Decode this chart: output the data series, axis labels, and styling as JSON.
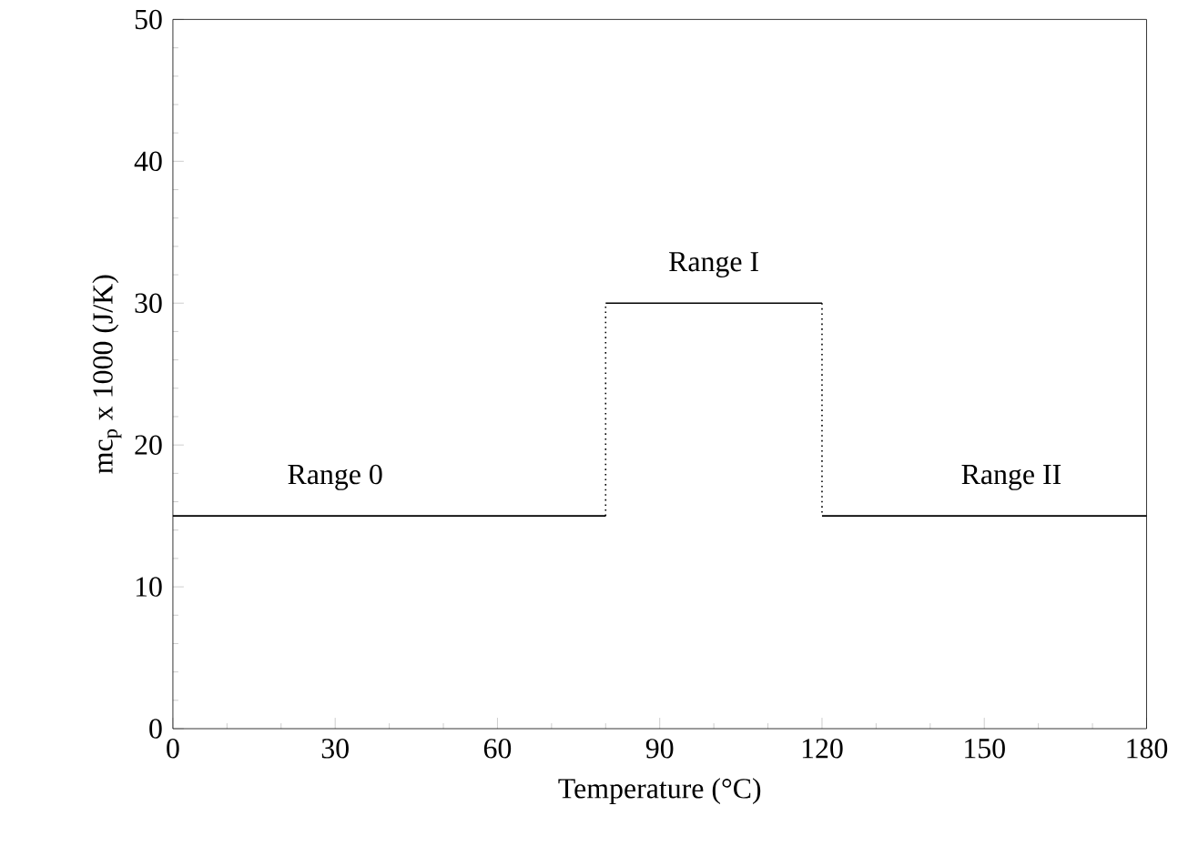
{
  "chart_data": {
    "type": "line",
    "xlabel": "Temperature (°C)",
    "ylabel": "mc$_{p}$ x 1000  (J/K)",
    "xlim": [
      0,
      180
    ],
    "xticks": [
      0,
      30,
      60,
      90,
      120,
      150,
      180
    ],
    "ylim": [
      0,
      50
    ],
    "yticks": [
      0,
      10,
      20,
      30,
      40,
      50
    ],
    "marker": "none",
    "series": [
      {
        "color": "#000000",
        "line_style": "solid",
        "x": [
          0,
          80
        ],
        "values": [
          15,
          15
        ]
      },
      {
        "color": "#000000",
        "line_style": "dotted",
        "x": [
          80,
          80
        ],
        "values": [
          15,
          30
        ]
      },
      {
        "color": "#000000",
        "line_style": "solid",
        "x": [
          80,
          120
        ],
        "values": [
          30,
          30
        ]
      },
      {
        "color": "#000000",
        "line_style": "dotted",
        "x": [
          120,
          120
        ],
        "values": [
          30,
          15
        ]
      },
      {
        "color": "#000000",
        "line_style": "solid",
        "x": [
          120,
          180
        ],
        "values": [
          15,
          15
        ]
      }
    ],
    "annotations": [
      {
        "text": "Range 0",
        "x": 30,
        "y": 15
      },
      {
        "text": "Range I",
        "x": 100,
        "y": 30
      },
      {
        "text": "Range II",
        "x": 155,
        "y": 15
      }
    ]
  }
}
